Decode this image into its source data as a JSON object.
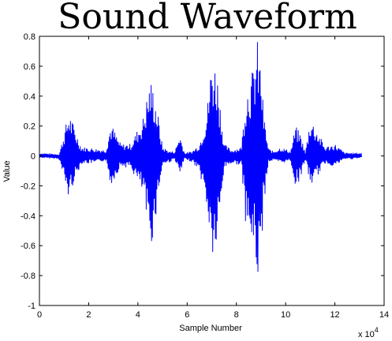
{
  "chart_data": {
    "type": "line",
    "title": "Sound Waveform",
    "xlabel": "Sample Number",
    "ylabel": "Value",
    "xlim": [
      0,
      140000
    ],
    "ylim": [
      -1,
      0.8
    ],
    "x_scale_label": {
      "base": "x 10",
      "exp": "4"
    },
    "x_ticks": [
      0,
      20000,
      40000,
      60000,
      80000,
      100000,
      120000,
      140000
    ],
    "x_tick_labels": [
      "0",
      "2",
      "4",
      "6",
      "8",
      "10",
      "12",
      "14"
    ],
    "y_ticks": [
      -1,
      -0.8,
      -0.6,
      -0.4,
      -0.2,
      0,
      0.2,
      0.4,
      0.6,
      0.8
    ],
    "y_tick_labels": [
      "-1",
      "-0.8",
      "-0.6",
      "-0.4",
      "-0.2",
      "0",
      "0.2",
      "0.4",
      "0.6",
      "0.8"
    ],
    "grid": false,
    "line_color": "#0000ff",
    "series": [
      {
        "x": [
          0,
          8000,
          12000,
          13000,
          17000,
          22000,
          27000,
          29000,
          33000,
          37000,
          42000,
          45000,
          46500,
          48000,
          50000,
          53000,
          55000,
          57000,
          59000,
          62000,
          65000,
          68000,
          70000,
          72000,
          73500,
          75000,
          78000,
          82000,
          84000,
          87000,
          88500,
          90000,
          91000,
          93000,
          95000,
          98000,
          102000,
          104000,
          106000,
          108000,
          110000,
          112000,
          116000,
          120000,
          124000,
          128000,
          131000
        ],
        "ymax": [
          0.02,
          0.01,
          0.3,
          0.25,
          0.06,
          0.05,
          0.04,
          0.22,
          0.08,
          0.08,
          0.25,
          0.52,
          0.45,
          0.3,
          0.06,
          0.03,
          0.03,
          0.15,
          0.02,
          0.03,
          0.08,
          0.3,
          0.67,
          0.6,
          0.35,
          0.08,
          0.04,
          0.06,
          0.45,
          0.6,
          0.78,
          0.6,
          0.3,
          0.05,
          0.03,
          0.06,
          0.03,
          0.2,
          0.15,
          0.02,
          0.26,
          0.2,
          0.06,
          0.08,
          0.02,
          0.02,
          0.02
        ],
        "ymin": [
          -0.01,
          -0.02,
          -0.3,
          -0.22,
          -0.05,
          -0.05,
          -0.03,
          -0.2,
          -0.07,
          -0.08,
          -0.25,
          -0.62,
          -0.52,
          -0.3,
          -0.06,
          -0.04,
          -0.02,
          -0.14,
          -0.02,
          -0.04,
          -0.1,
          -0.35,
          -0.7,
          -0.65,
          -0.4,
          -0.08,
          -0.05,
          -0.06,
          -0.5,
          -0.65,
          -0.84,
          -0.72,
          -0.35,
          -0.04,
          -0.03,
          -0.05,
          -0.03,
          -0.21,
          -0.15,
          -0.02,
          -0.2,
          -0.16,
          -0.05,
          -0.07,
          -0.02,
          -0.02,
          -0.01
        ]
      }
    ]
  }
}
